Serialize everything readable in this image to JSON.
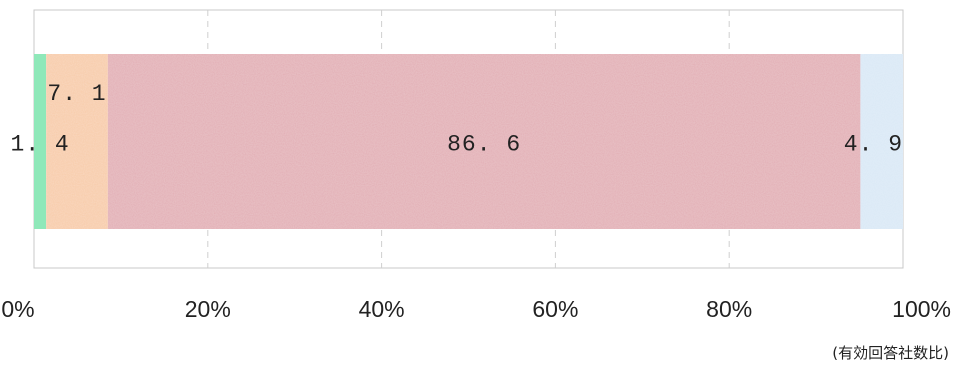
{
  "chart_data": {
    "type": "bar",
    "orientation": "horizontal",
    "stacked": true,
    "series": [
      {
        "value": 1.4,
        "label": "1. 4",
        "color": "#8fe8b9"
      },
      {
        "value": 7.1,
        "label": "7. 1",
        "color": "#f8cba8"
      },
      {
        "value": 86.6,
        "label": "86. 6",
        "color": "#e2adb4"
      },
      {
        "value": 4.9,
        "label": "4. 9",
        "color": "#d9e8f6"
      }
    ],
    "xlim": [
      0,
      100
    ],
    "xticks": [
      "0%",
      "20%",
      "40%",
      "60%",
      "80%",
      "100%"
    ],
    "grid": "vertical-dashed",
    "note": "(有効回答社数比)"
  }
}
